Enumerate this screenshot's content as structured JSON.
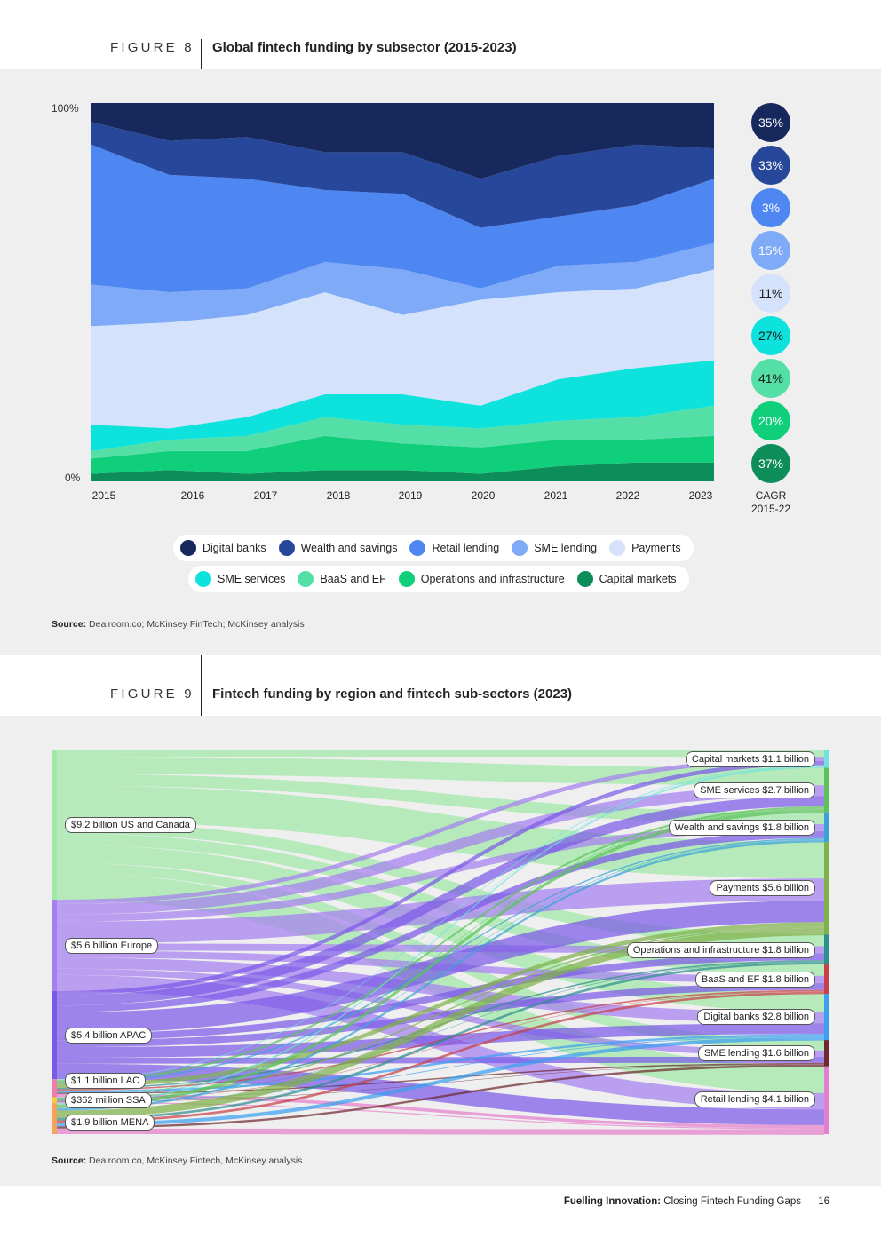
{
  "figure8": {
    "label": "FIGURE 8",
    "title": "Global fintech funding by subsector (2015-2023)",
    "source_label": "Source:",
    "source_text": "Dealroom.co; McKinsey FinTech; McKinsey analysis",
    "cagr_label_line1": "CAGR",
    "cagr_label_line2": "2015-22"
  },
  "figure9": {
    "label": "FIGURE 9",
    "title": "Fintech funding by region and fintech sub-sectors (2023)",
    "source_label": "Source:",
    "source_text": "Dealroom.co, McKinsey Fintech, McKinsey analysis"
  },
  "footer": {
    "title_bold": "Fuelling Innovation:",
    "title_rest": "Closing Fintech Funding Gaps",
    "page": "16"
  },
  "colors": {
    "Digital banks": "#17285c",
    "Wealth and savings": "#27479a",
    "Retail lending": "#4f87f2",
    "SME lending": "#7eaaf8",
    "Payments": "#d4e2fb",
    "SME services": "#0de3dc",
    "BaaS and EF": "#53dfa6",
    "Operations and infrastructure": "#0fcf7a",
    "Capital markets": "#0c8d5a"
  },
  "chart_data": [
    {
      "type": "area",
      "stacked": true,
      "normalized": true,
      "title": "Global fintech funding by subsector (2015-2023)",
      "ylabel_top": "100%",
      "ylabel_bottom": "0%",
      "ylim": [
        0,
        100
      ],
      "categories": [
        "2015",
        "2016",
        "2017",
        "2018",
        "2019",
        "2020",
        "2021",
        "2022",
        "2023"
      ],
      "series_bottom_to_top": [
        {
          "name": "Capital markets",
          "values": [
            2,
            3,
            2,
            3,
            3,
            2,
            4,
            5,
            5
          ]
        },
        {
          "name": "Operations and infrastructure",
          "values": [
            4,
            5,
            6,
            9,
            7,
            7,
            7,
            6,
            7
          ]
        },
        {
          "name": "BaaS and EF",
          "values": [
            2,
            3,
            4,
            5,
            5,
            5,
            5,
            6,
            8
          ]
        },
        {
          "name": "SME services",
          "values": [
            7,
            3,
            5,
            6,
            8,
            6,
            11,
            13,
            12
          ]
        },
        {
          "name": "Payments",
          "values": [
            26,
            28,
            27,
            27,
            21,
            28,
            23,
            21,
            24
          ]
        },
        {
          "name": "SME lending",
          "values": [
            11,
            8,
            7,
            8,
            12,
            3,
            7,
            7,
            7
          ]
        },
        {
          "name": "Retail lending",
          "values": [
            37,
            31,
            29,
            19,
            20,
            16,
            13,
            15,
            17
          ]
        },
        {
          "name": "Wealth and savings",
          "values": [
            6,
            9,
            11,
            10,
            11,
            13,
            16,
            16,
            8
          ]
        },
        {
          "name": "Digital banks",
          "values": [
            5,
            10,
            9,
            13,
            13,
            20,
            14,
            11,
            12
          ]
        }
      ],
      "cagr_2015_22": [
        {
          "name": "Digital banks",
          "value": "35%",
          "text_color": "#ffffff"
        },
        {
          "name": "Wealth and savings",
          "value": "33%",
          "text_color": "#ffffff"
        },
        {
          "name": "Retail lending",
          "value": "3%",
          "text_color": "#ffffff"
        },
        {
          "name": "SME lending",
          "value": "15%",
          "text_color": "#ffffff"
        },
        {
          "name": "Payments",
          "value": "11%",
          "text_color": "#1c1c1c"
        },
        {
          "name": "SME services",
          "value": "27%",
          "text_color": "#1c1c1c"
        },
        {
          "name": "BaaS and EF",
          "value": "41%",
          "text_color": "#1c1c1c"
        },
        {
          "name": "Operations and infrastructure",
          "value": "20%",
          "text_color": "#ffffff"
        },
        {
          "name": "Capital markets",
          "value": "37%",
          "text_color": "#ffffff"
        }
      ],
      "legend_rows": [
        [
          "Digital banks",
          "Wealth and savings",
          "Retail lending",
          "SME lending",
          "Payments"
        ],
        [
          "SME services",
          "BaaS and EF",
          "Operations and infrastructure",
          "Capital markets"
        ]
      ]
    },
    {
      "type": "sankey",
      "title": "Fintech funding by region and fintech sub-sectors (2023)",
      "units": "USD billion",
      "sources": [
        {
          "name": "US and Canada",
          "label": "$9.2 billion US and Canada",
          "value": 9.2,
          "color": "#9fe8a6"
        },
        {
          "name": "Europe",
          "label": "$5.6 billion Europe",
          "value": 5.6,
          "color": "#a57ff0"
        },
        {
          "name": "APAC",
          "label": "$5.4 billion APAC",
          "value": 5.4,
          "color": "#7c5ae8"
        },
        {
          "name": "LAC",
          "label": "$1.1 billion LAC",
          "value": 1.1,
          "color": "#f07fa8"
        },
        {
          "name": "SSA",
          "label": "$362 million SSA",
          "value": 0.362,
          "color": "#f7c93d"
        },
        {
          "name": "MENA",
          "label": "$1.9 billion MENA",
          "value": 1.9,
          "color": "#f5a35a"
        }
      ],
      "targets": [
        {
          "name": "Capital markets",
          "label": "Capital markets $1.1 billion",
          "value": 1.1,
          "color": "#6fe3dd"
        },
        {
          "name": "SME services",
          "label": "SME services $2.7 billion",
          "value": 2.7,
          "color": "#5cc35c"
        },
        {
          "name": "Wealth and savings",
          "label": "Wealth and savings $1.8 billion",
          "value": 1.8,
          "color": "#3ba3d8"
        },
        {
          "name": "Payments",
          "label": "Payments $5.6 billion",
          "value": 5.6,
          "color": "#7fb24a"
        },
        {
          "name": "Operations and infrastructure",
          "label": "Operations and infrastructure $1.8 billion",
          "value": 1.8,
          "color": "#2e8f8f"
        },
        {
          "name": "BaaS and EF",
          "label": "BaaS and EF $1.8 billion",
          "value": 1.8,
          "color": "#c8414a"
        },
        {
          "name": "Digital banks",
          "label": "Digital banks $2.8 billion",
          "value": 2.8,
          "color": "#3aa0ef"
        },
        {
          "name": "SME lending",
          "label": "SME lending $1.6 billion",
          "value": 1.6,
          "color": "#6e2a30"
        },
        {
          "name": "Retail lending",
          "label": "Retail lending $4.1 billion",
          "value": 4.1,
          "color": "#e37fcc"
        }
      ]
    }
  ]
}
